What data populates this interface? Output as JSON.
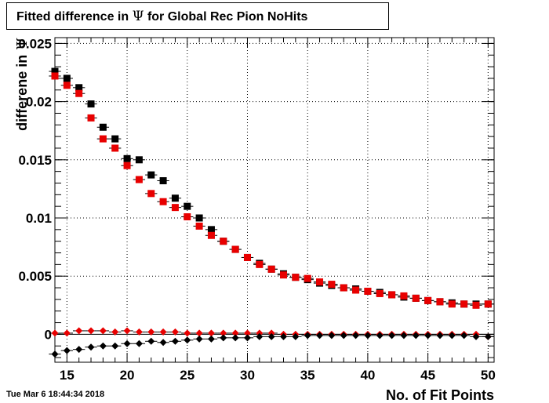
{
  "title": {
    "prefix": "Fitted difference in",
    "symbol": "Ψ",
    "suffix": "for Global Rec Pion NoHits"
  },
  "timestamp": "Tue Mar  6 18:44:34 2018",
  "chart_data": {
    "type": "scatter",
    "title": "Fitted difference in Ψ for Global Rec Pion NoHits",
    "xlabel": "No. of Fit Points",
    "ylabel_prefix": "differene in",
    "ylabel_symbol": "Ψ",
    "xlim": [
      14,
      50.5
    ],
    "ylim": [
      -0.0024,
      0.0255
    ],
    "grid": true,
    "x_ticks": [
      15,
      20,
      25,
      30,
      35,
      40,
      45,
      50
    ],
    "y_ticks": [
      0,
      0.005,
      0.01,
      0.015,
      0.02,
      0.025
    ],
    "y_tick_labels": [
      "0",
      "0.005",
      "0.01",
      "0.015",
      "0.02",
      "0.025"
    ],
    "x": [
      14,
      15,
      16,
      17,
      18,
      19,
      20,
      21,
      22,
      23,
      24,
      25,
      26,
      27,
      28,
      29,
      30,
      31,
      32,
      33,
      34,
      35,
      36,
      37,
      38,
      39,
      40,
      41,
      42,
      43,
      44,
      45,
      46,
      47,
      48,
      49,
      50
    ],
    "series": [
      {
        "color": "#000000",
        "marker": "square",
        "values": [
          0.0226,
          0.022,
          0.0212,
          0.0198,
          0.0178,
          0.0168,
          0.0151,
          0.015,
          0.0137,
          0.0132,
          0.0117,
          0.011,
          0.01,
          0.009,
          0.008,
          0.0073,
          0.0066,
          0.0061,
          0.0056,
          0.0052,
          0.0049,
          0.0047,
          0.0044,
          0.0042,
          0.004,
          0.0039,
          0.0037,
          0.0036,
          0.0034,
          0.0032,
          0.0031,
          0.0029,
          0.0028,
          0.0027,
          0.0026,
          0.0026,
          0.0026
        ]
      },
      {
        "color": "#e80000",
        "marker": "square",
        "values": [
          0.0222,
          0.0214,
          0.0207,
          0.0186,
          0.0168,
          0.016,
          0.0145,
          0.0133,
          0.0121,
          0.0114,
          0.0109,
          0.0101,
          0.0093,
          0.0085,
          0.008,
          0.0073,
          0.0066,
          0.006,
          0.0056,
          0.0051,
          0.0049,
          0.0048,
          0.0045,
          0.0043,
          0.004,
          0.0038,
          0.0037,
          0.0035,
          0.0034,
          0.0033,
          0.0031,
          0.0029,
          0.0028,
          0.0026,
          0.0026,
          0.0025,
          0.0026
        ]
      },
      {
        "color": "#e80000",
        "marker": "diamond",
        "values": [
          0.0001,
          0.0001,
          0.0003,
          0.0003,
          0.0003,
          0.0002,
          0.0003,
          0.0002,
          0.0002,
          0.0002,
          0.0002,
          0.0001,
          0.0001,
          0.0001,
          0.0001,
          0.0001,
          0.0001,
          0.0001,
          0.0001,
          0.0,
          0.0,
          0.0,
          0.0,
          0.0,
          0.0,
          0.0,
          0.0,
          0.0,
          0.0,
          0.0,
          0.0,
          0.0,
          0.0,
          0.0,
          0.0,
          0.0,
          -0.0002
        ]
      },
      {
        "color": "#000000",
        "marker": "diamond",
        "values": [
          -0.0017,
          -0.0014,
          -0.0013,
          -0.0011,
          -0.001,
          -0.001,
          -0.0008,
          -0.0008,
          -0.0006,
          -0.0007,
          -0.0006,
          -0.0005,
          -0.0004,
          -0.0004,
          -0.0003,
          -0.0003,
          -0.0003,
          -0.0002,
          -0.0002,
          -0.0002,
          -0.0002,
          -0.0001,
          -0.0001,
          -0.0001,
          -0.0001,
          -0.0001,
          -0.0001,
          -0.0001,
          -0.0001,
          -0.0001,
          -0.0001,
          -0.0001,
          -0.0001,
          -0.0001,
          -0.0001,
          -0.0002,
          -0.0002
        ]
      }
    ]
  }
}
